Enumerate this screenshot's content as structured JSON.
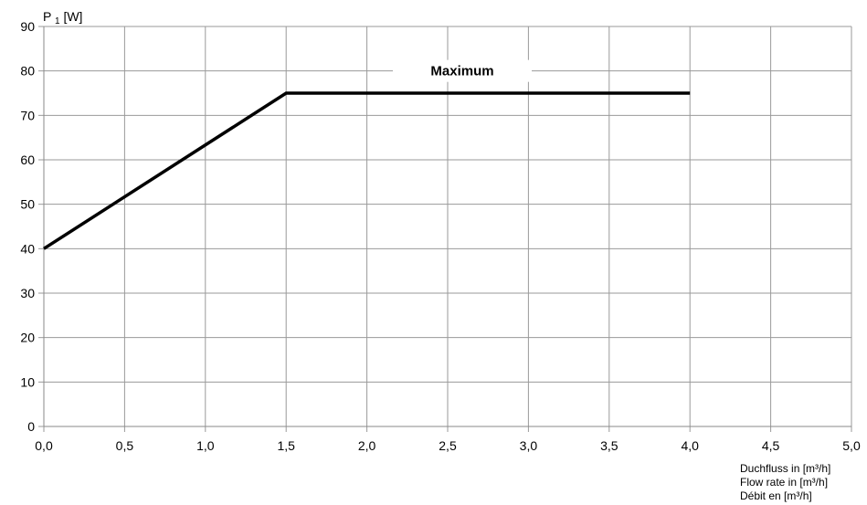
{
  "chart_data": {
    "type": "line",
    "ylabel_main": "P",
    "ylabel_sub": "1",
    "ylabel_unit": "[W]",
    "xlabel_lines": [
      "Duchfluss in [m³/h]",
      "Flow rate in [m³/h]",
      "Débit en [m³/h]"
    ],
    "xlim": [
      0,
      5
    ],
    "ylim": [
      0,
      90
    ],
    "x_ticks": [
      "0,0",
      "0,5",
      "1,0",
      "1,5",
      "2,0",
      "2,5",
      "3,0",
      "3,5",
      "4,0",
      "4,5",
      "5,0"
    ],
    "y_ticks": [
      "0",
      "10",
      "20",
      "30",
      "40",
      "50",
      "60",
      "70",
      "80",
      "90"
    ],
    "grid": true,
    "series": [
      {
        "name": "Maximum",
        "x": [
          0,
          1.5,
          4.0
        ],
        "y": [
          40,
          75,
          75
        ],
        "color": "#000000"
      }
    ],
    "annotation": {
      "text": "Maximum",
      "x": 2.5,
      "y": 80
    }
  }
}
